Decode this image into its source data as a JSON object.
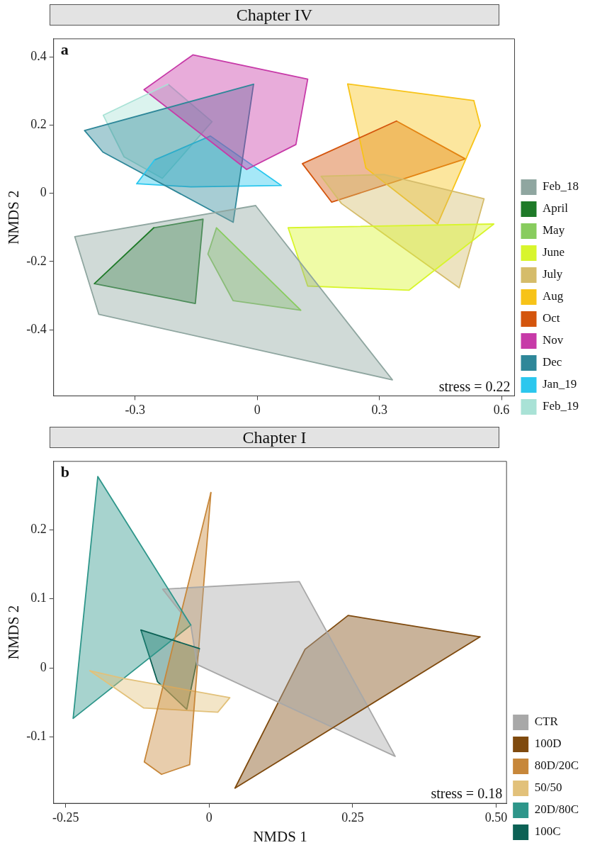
{
  "chart_data": [
    {
      "type": "area",
      "title": "Chapter IV",
      "ylabel": "NMDS 2",
      "annotations": [
        "a",
        "stress = 0.22"
      ],
      "xlim": [
        -0.5,
        0.632
      ],
      "ylim": [
        -0.594,
        0.453
      ],
      "xticks": [
        -0.3,
        0,
        0.3,
        0.6
      ],
      "yticks": [
        -0.4,
        -0.2,
        0,
        0.2,
        0.4
      ],
      "grid": false,
      "legend": "right",
      "marker": "none",
      "series": [
        {
          "name": "Feb_18",
          "color": "#8fa6a0",
          "x": [
            -0.448,
            -0.389,
            0.332,
            -0.004
          ],
          "values": [
            -0.127,
            -0.355,
            -0.547,
            -0.036
          ]
        },
        {
          "name": "April",
          "color": "#1e7a28",
          "x": [
            -0.4,
            -0.152,
            -0.133,
            -0.254
          ],
          "values": [
            -0.265,
            -0.323,
            -0.076,
            -0.101
          ]
        },
        {
          "name": "May",
          "color": "#88cc5e",
          "x": [
            -0.1,
            -0.121,
            -0.059,
            0.107
          ],
          "values": [
            -0.101,
            -0.178,
            -0.315,
            -0.343
          ]
        },
        {
          "name": "June",
          "color": "#d8f52c",
          "x": [
            0.076,
            0.124,
            0.373,
            0.581
          ],
          "values": [
            -0.101,
            -0.272,
            -0.284,
            -0.09
          ]
        },
        {
          "name": "July",
          "color": "#d5bc6a",
          "x": [
            0.157,
            0.207,
            0.496,
            0.557,
            0.311
          ],
          "values": [
            0.05,
            -0.03,
            -0.277,
            -0.016,
            0.055
          ]
        },
        {
          "name": "Aug",
          "color": "#f7c318",
          "x": [
            0.222,
            0.267,
            0.443,
            0.548,
            0.532
          ],
          "values": [
            0.321,
            0.074,
            -0.09,
            0.198,
            0.272
          ]
        },
        {
          "name": "Oct",
          "color": "#d4550d",
          "x": [
            0.111,
            0.183,
            0.511,
            0.342
          ],
          "values": [
            0.087,
            -0.026,
            0.101,
            0.212
          ]
        },
        {
          "name": "Nov",
          "color": "#c73aa8",
          "x": [
            -0.278,
            -0.158,
            0.124,
            0.095,
            -0.026
          ],
          "values": [
            0.304,
            0.406,
            0.335,
            0.143,
            0.07
          ]
        },
        {
          "name": "Dec",
          "color": "#2e8799",
          "x": [
            -0.424,
            -0.379,
            -0.059,
            -0.009
          ],
          "values": [
            0.184,
            0.121,
            -0.085,
            0.32
          ]
        },
        {
          "name": "Jan_19",
          "color": "#2bc7ee",
          "x": [
            -0.296,
            -0.163,
            0.059,
            -0.115,
            -0.252
          ],
          "values": [
            0.028,
            0.019,
            0.023,
            0.168,
            0.098
          ]
        },
        {
          "name": "Feb_19",
          "color": "#a9e2d6",
          "x": [
            -0.378,
            -0.327,
            -0.233,
            -0.111,
            -0.219
          ],
          "values": [
            0.229,
            0.107,
            0.044,
            0.21,
            0.32
          ]
        }
      ]
    },
    {
      "type": "area",
      "title": "Chapter I",
      "xlabel": "NMDS 1",
      "ylabel": "NMDS 2",
      "annotations": [
        "b",
        "stress = 0.18"
      ],
      "xlim": [
        -0.271,
        0.518
      ],
      "ylim": [
        -0.196,
        0.299
      ],
      "xticks": [
        -0.25,
        0,
        0.25,
        {
          "value": 0.5,
          "label": "0.50"
        }
      ],
      "yticks": [
        -0.1,
        0,
        0.1,
        0.2
      ],
      "grid": false,
      "legend": "right",
      "marker": "none",
      "series": [
        {
          "name": "CTR",
          "color": "#a8a8a8",
          "x": [
            -0.081,
            0.157,
            0.324,
            -0.021,
            -0.032
          ],
          "values": [
            0.114,
            0.125,
            -0.128,
            0.005,
            0.062
          ]
        },
        {
          "name": "100D",
          "color": "#7f4a0e",
          "x": [
            0.045,
            0.167,
            0.242,
            0.472
          ],
          "values": [
            -0.174,
            0.027,
            0.076,
            0.045
          ]
        },
        {
          "name": "80D/20C",
          "color": "#c7873a",
          "x": [
            0.003,
            -0.034,
            -0.083,
            -0.113
          ],
          "values": [
            0.254,
            -0.14,
            -0.154,
            -0.136
          ]
        },
        {
          "name": "50/50",
          "color": "#e2c17a",
          "x": [
            -0.208,
            -0.114,
            0.015,
            0.036,
            -0.15
          ],
          "values": [
            -0.004,
            -0.058,
            -0.064,
            -0.043,
            -0.015
          ]
        },
        {
          "name": "20D/80C",
          "color": "#2e968a",
          "x": [
            -0.194,
            -0.237,
            -0.032
          ],
          "values": [
            0.277,
            -0.073,
            0.062
          ]
        },
        {
          "name": "100C",
          "color": "#0c6155",
          "x": [
            -0.119,
            -0.09,
            -0.039,
            -0.017
          ],
          "values": [
            0.055,
            -0.02,
            -0.06,
            0.028
          ]
        }
      ]
    }
  ]
}
